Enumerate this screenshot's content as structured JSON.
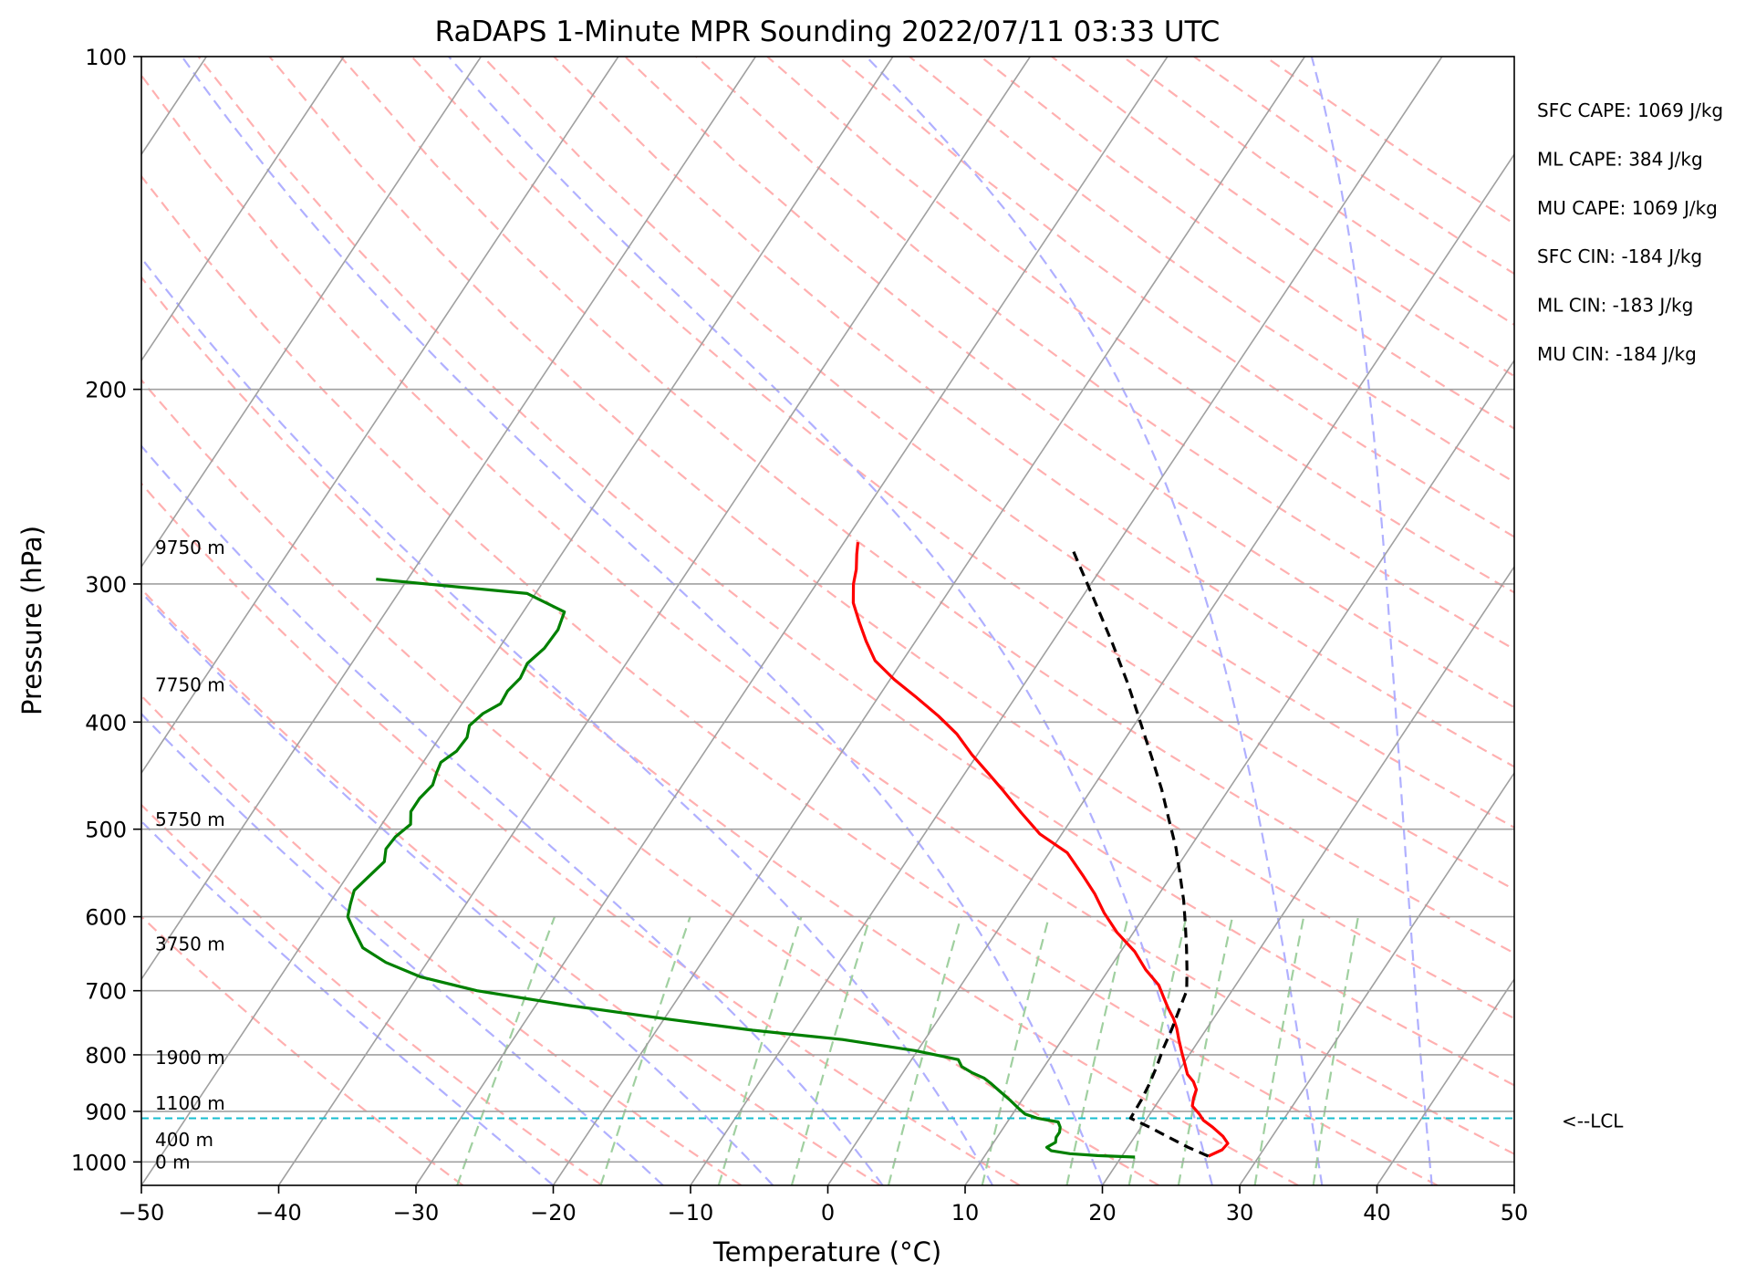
{
  "chart_data": {
    "type": "line",
    "title": "RaDAPS 1-Minute MPR Sounding 2022/07/11 03:33 UTC",
    "xlabel": "Temperature (°C)",
    "ylabel": "Pressure (hPa)",
    "xlim": [
      -50,
      50
    ],
    "ylim": [
      1050,
      100
    ],
    "y_scale": "log",
    "x_ticks": [
      -50,
      -40,
      -30,
      -20,
      -10,
      0,
      10,
      20,
      30,
      40,
      50
    ],
    "x_tick_labels": [
      "−50",
      "−40",
      "−30",
      "−20",
      "−10",
      "0",
      "10",
      "20",
      "30",
      "40",
      "50"
    ],
    "y_ticks": [
      100,
      200,
      300,
      400,
      500,
      600,
      700,
      800,
      900,
      1000
    ],
    "y_tick_labels": [
      "100",
      "200",
      "300",
      "400",
      "500",
      "600",
      "700",
      "800",
      "900",
      "1000"
    ],
    "grid": true,
    "skew_t": true,
    "colors": {
      "temperature": "#ff0000",
      "dewpoint": "#008000",
      "parcel": "#000000",
      "isotherm": "#a0a0a0",
      "dry_adiabat": "#ffb0b0",
      "moist_adiabat": "#b0b0ff",
      "mixing_ratio": "#a0d0a0",
      "lcl": "#17becf"
    },
    "series": [
      {
        "key": "temperature",
        "style": "solid",
        "points": [
          [
            26.3,
            988
          ],
          [
            27.0,
            975
          ],
          [
            27.1,
            962
          ],
          [
            26.4,
            948
          ],
          [
            25.2,
            930
          ],
          [
            24.2,
            917
          ],
          [
            23.6,
            905
          ],
          [
            22.7,
            890
          ],
          [
            22.4,
            875
          ],
          [
            22.2,
            860
          ],
          [
            21.6,
            846
          ],
          [
            20.8,
            833
          ],
          [
            20.1,
            815
          ],
          [
            19.3,
            795
          ],
          [
            18.5,
            775
          ],
          [
            17.8,
            757
          ],
          [
            17.1,
            742
          ],
          [
            16.2,
            726
          ],
          [
            15.3,
            709
          ],
          [
            14.4,
            692
          ],
          [
            12.7,
            670
          ],
          [
            11.0,
            645
          ],
          [
            8.8,
            620
          ],
          [
            6.9,
            595
          ],
          [
            5.3,
            572
          ],
          [
            3.5,
            550
          ],
          [
            1.3,
            525
          ],
          [
            -1.6,
            505
          ],
          [
            -4.0,
            483
          ],
          [
            -6.3,
            462
          ],
          [
            -8.3,
            445
          ],
          [
            -10.4,
            428
          ],
          [
            -12.5,
            410
          ],
          [
            -14.7,
            395
          ],
          [
            -17.2,
            380
          ],
          [
            -19.7,
            366
          ],
          [
            -22.0,
            352
          ],
          [
            -23.6,
            338
          ],
          [
            -25.0,
            325
          ],
          [
            -26.4,
            312
          ],
          [
            -27.3,
            300
          ],
          [
            -27.8,
            291
          ],
          [
            -28.5,
            282
          ],
          [
            -29.0,
            275
          ]
        ]
      },
      {
        "key": "dewpoint",
        "style": "solid",
        "points": [
          [
            21.0,
            990
          ],
          [
            18.2,
            987
          ],
          [
            16.1,
            983
          ],
          [
            14.6,
            977
          ],
          [
            14.1,
            970
          ],
          [
            14.5,
            960
          ],
          [
            14.3,
            950
          ],
          [
            14.3,
            940
          ],
          [
            14.1,
            930
          ],
          [
            13.7,
            920
          ],
          [
            12.0,
            913
          ],
          [
            10.9,
            905
          ],
          [
            10.2,
            895
          ],
          [
            9.2,
            880
          ],
          [
            8.1,
            865
          ],
          [
            7.0,
            850
          ],
          [
            6.2,
            840
          ],
          [
            5.0,
            830
          ],
          [
            4.0,
            820
          ],
          [
            3.4,
            808
          ],
          [
            -0.2,
            793
          ],
          [
            -6.0,
            775
          ],
          [
            -13.0,
            760
          ],
          [
            -20.0,
            742
          ],
          [
            -27.5,
            722
          ],
          [
            -35.0,
            700
          ],
          [
            -39.8,
            680
          ],
          [
            -43.0,
            660
          ],
          [
            -45.4,
            640
          ],
          [
            -46.7,
            620
          ],
          [
            -48.0,
            600
          ],
          [
            -48.4,
            585
          ],
          [
            -48.8,
            568
          ],
          [
            -48.4,
            551
          ],
          [
            -48.0,
            535
          ],
          [
            -48.5,
            521
          ],
          [
            -48.4,
            508
          ],
          [
            -47.9,
            495
          ],
          [
            -48.5,
            482
          ],
          [
            -48.5,
            469
          ],
          [
            -48.2,
            456
          ],
          [
            -48.5,
            445
          ],
          [
            -48.7,
            435
          ],
          [
            -48.1,
            425
          ],
          [
            -48.0,
            413
          ],
          [
            -48.4,
            403
          ],
          [
            -48.0,
            393
          ],
          [
            -47.2,
            385
          ],
          [
            -47.3,
            375
          ],
          [
            -47.0,
            365
          ],
          [
            -47.2,
            354
          ],
          [
            -46.7,
            343
          ],
          [
            -46.6,
            330
          ],
          [
            -47.0,
            318
          ],
          [
            -50.6,
            306
          ],
          [
            -62.3,
            297
          ]
        ]
      },
      {
        "key": "parcel",
        "style": "dashed",
        "points": [
          [
            26.3,
            988
          ],
          [
            24.4,
            970
          ],
          [
            22.5,
            950
          ],
          [
            20.6,
            930
          ],
          [
            18.8,
            913
          ],
          [
            18.7,
            880
          ],
          [
            18.5,
            850
          ],
          [
            18.2,
            820
          ],
          [
            17.8,
            790
          ],
          [
            17.5,
            760
          ],
          [
            17.1,
            730
          ],
          [
            16.7,
            700
          ],
          [
            15.7,
            670
          ],
          [
            14.6,
            640
          ],
          [
            13.4,
            610
          ],
          [
            12.1,
            580
          ],
          [
            10.6,
            550
          ],
          [
            9.0,
            520
          ],
          [
            7.1,
            490
          ],
          [
            5.1,
            460
          ],
          [
            2.8,
            430
          ],
          [
            0.3,
            400
          ],
          [
            -2.4,
            370
          ],
          [
            -5.5,
            340
          ],
          [
            -9.0,
            310
          ],
          [
            -12.9,
            280
          ]
        ]
      }
    ],
    "lcl": {
      "pressure": 913,
      "label": "<--LCL"
    },
    "height_labels": [
      {
        "text": "0 m",
        "pressure": 1000
      },
      {
        "text": "400 m",
        "pressure": 955
      },
      {
        "text": "1100 m",
        "pressure": 885
      },
      {
        "text": "1900 m",
        "pressure": 805
      },
      {
        "text": "3750 m",
        "pressure": 635
      },
      {
        "text": "5750 m",
        "pressure": 490
      },
      {
        "text": "7750 m",
        "pressure": 370
      },
      {
        "text": "9750 m",
        "pressure": 278
      }
    ],
    "annotations": [
      "SFC CAPE: 1069 J/kg",
      "ML CAPE: 384 J/kg",
      "MU CAPE: 1069 J/kg",
      "SFC CIN: -184 J/kg",
      "ML CIN: -183 J/kg",
      "MU CIN: -184 J/kg"
    ]
  }
}
